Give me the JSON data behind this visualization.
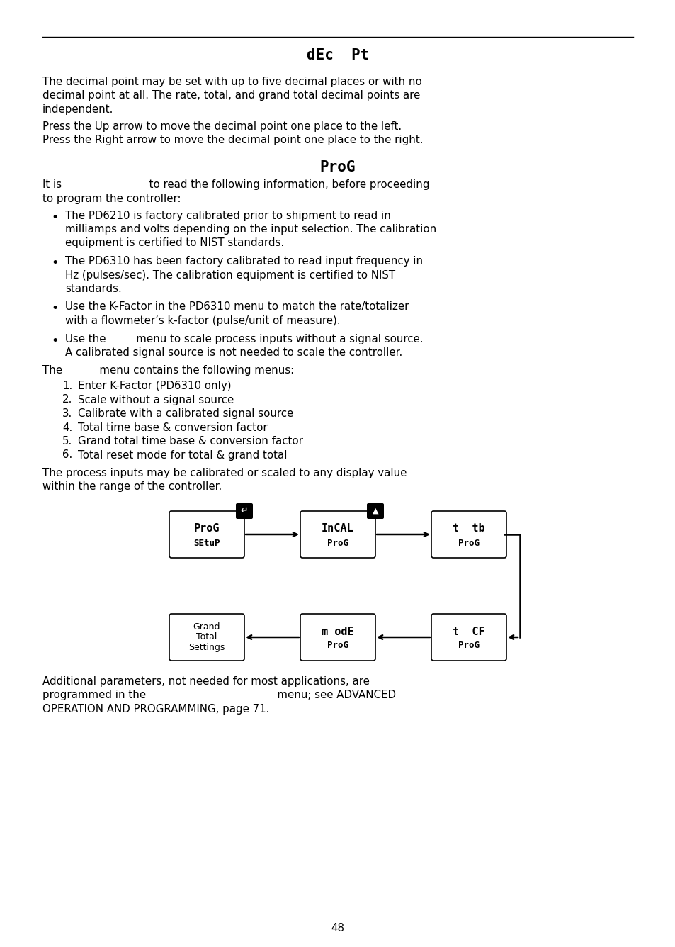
{
  "title_dec": "dEc  Pt",
  "title_prog": "ProG",
  "page_number": "48",
  "bg_color": "#ffffff",
  "text_color": "#000000",
  "paragraph1_lines": [
    "The decimal point may be set with up to five decimal places or with no",
    "decimal point at all. The rate, total, and grand total decimal points are",
    "independent."
  ],
  "paragraph2_lines": [
    "Press the Up arrow to move the decimal point one place to the left.",
    "Press the Right arrow to move the decimal point one place to the right."
  ],
  "it_is_line1": "It is                          to read the following information, before proceeding",
  "it_is_line2": "to program the controller:",
  "bullet1_lines": [
    "The PD6210 is factory calibrated prior to shipment to read in",
    "milliamps and volts depending on the input selection. The calibration",
    "equipment is certified to NIST standards."
  ],
  "bullet2_lines": [
    "The PD6310 has been factory calibrated to read input frequency in",
    "Hz (pulses/sec). The calibration equipment is certified to NIST",
    "standards."
  ],
  "bullet3_lines": [
    "Use the K-Factor in the PD6310 menu to match the rate/totalizer",
    "with a flowmeter’s k-factor (pulse/unit of measure)."
  ],
  "bullet4_lines": [
    "Use the         menu to scale process inputs without a signal source.",
    "A calibrated signal source is not needed to scale the controller."
  ],
  "the_menu_line": "The           menu contains the following menus:",
  "numbered_items": [
    "Enter K-Factor (PD6310 only)",
    "Scale without a signal source",
    "Calibrate with a calibrated signal source",
    "Total time base & conversion factor",
    "Grand total time base & conversion factor",
    "Total reset mode for total & grand total"
  ],
  "closing_lines": [
    "The process inputs may be calibrated or scaled to any display value",
    "within the range of the controller."
  ],
  "footer_lines": [
    "Additional parameters, not needed for most applications, are",
    "programmed in the                                       menu; see ADVANCED",
    "OPERATION AND PROGRAMMING, page 71."
  ],
  "box1_line1": "ProG",
  "box1_line2": "SEtuP",
  "box2_line1": "InCAL",
  "box2_line2": "ProG",
  "box3_line1": "t  tb",
  "box3_line2": "ProG",
  "box4_line1": "Grand",
  "box4_line2": "Total",
  "box4_line3": "Settings",
  "box5_line1": "m odE",
  "box5_line2": "ProG",
  "box6_line1": "t  CF",
  "box6_line2": "ProG"
}
